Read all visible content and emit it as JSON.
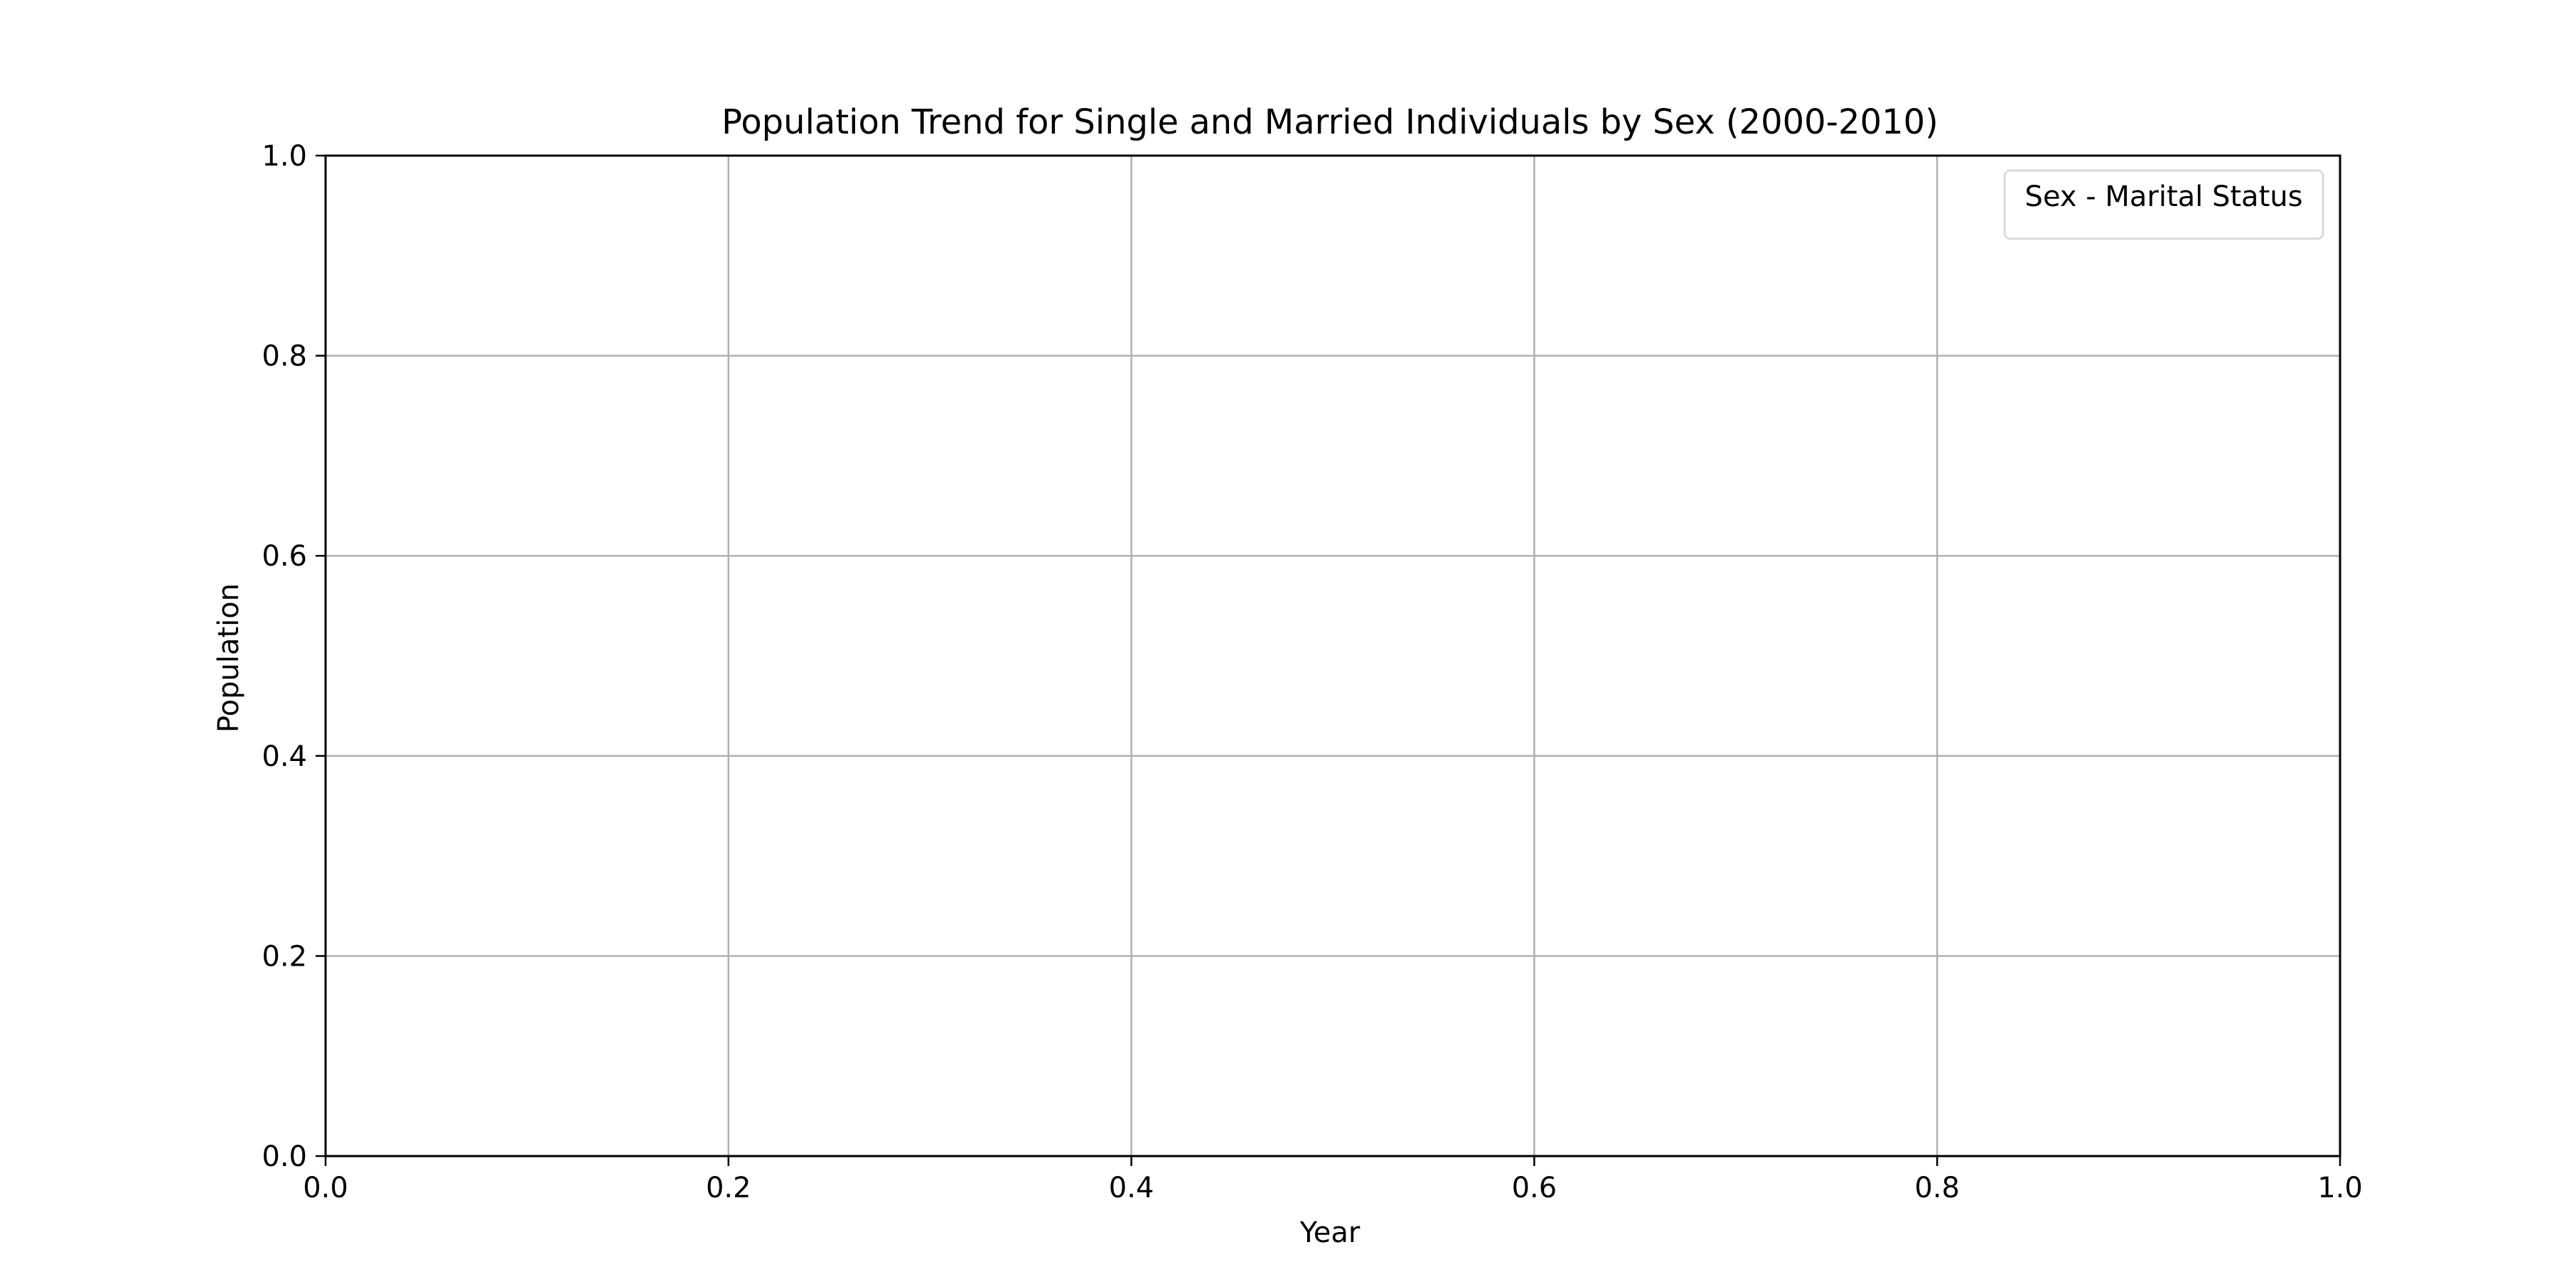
{
  "chart_data": {
    "type": "line",
    "title": "Population Trend for Single and Married Individuals by Sex (2000-2010)",
    "xlabel": "Year",
    "ylabel": "Population",
    "xlim": [
      0.0,
      1.0
    ],
    "ylim": [
      0.0,
      1.0
    ],
    "xticks": [
      0.0,
      0.2,
      0.4,
      0.6,
      0.8,
      1.0
    ],
    "yticks": [
      0.0,
      0.2,
      0.4,
      0.6,
      0.8,
      1.0
    ],
    "xtick_labels": [
      "0.0",
      "0.2",
      "0.4",
      "0.6",
      "0.8",
      "1.0"
    ],
    "ytick_labels": [
      "0.0",
      "0.2",
      "0.4",
      "0.6",
      "0.8",
      "1.0"
    ],
    "grid": true,
    "legend": {
      "title": "Sex - Marital Status",
      "placement": "top-right"
    },
    "series": []
  },
  "colors": {
    "background": "#ffffff",
    "axes": "#000000",
    "grid": "#b0b0b0",
    "legend_border": "#d9d9d9"
  }
}
